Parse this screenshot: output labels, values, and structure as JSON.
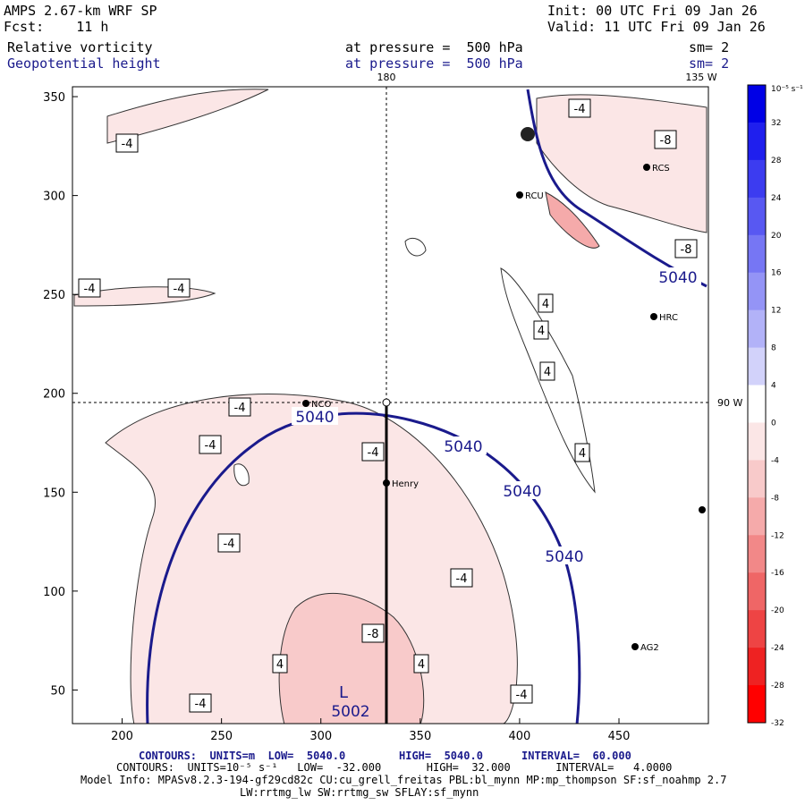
{
  "header": {
    "model": "AMPS 2.67-km WRF SP",
    "forecast": "Fcst:    11 h",
    "init": "Init: 00 UTC Fri 09 Jan 26",
    "valid": "Valid: 11 UTC Fri 09 Jan 26",
    "field1": {
      "name": "Relative vorticity",
      "level": "at pressure =  500 hPa",
      "smooth": "sm= 2"
    },
    "field2": {
      "name": "Geopotential height",
      "level": "at pressure =  500 hPa",
      "smooth": "sm= 2"
    }
  },
  "map_labels": {
    "lon180": "180",
    "lon135w": "135 W",
    "lon90w": "90 W",
    "stations": [
      "NCO",
      "Henry",
      "RCS",
      "RCU",
      "HRC",
      "AG2"
    ]
  },
  "colorbar": {
    "unit_label": "10⁻⁵ s⁻¹",
    "ticks": [
      "32",
      "28",
      "24",
      "20",
      "16",
      "12",
      "8",
      "4",
      "0",
      "-4",
      "-8",
      "-12",
      "-16",
      "-20",
      "-24",
      "-28",
      "-32"
    ],
    "colors": [
      "#0000e6",
      "#1f1fee",
      "#3c3cf0",
      "#5858f2",
      "#7676f4",
      "#9494f6",
      "#b2b2f8",
      "#d2d2fa",
      "#ffffff",
      "#fbe6e6",
      "#f8caca",
      "#f5aaaa",
      "#f28888",
      "#ef6666",
      "#ee4444",
      "#ee2222",
      "#ff0000"
    ]
  },
  "chart_data": {
    "type": "contour",
    "x_ticks": [
      200,
      250,
      300,
      350,
      400,
      450
    ],
    "y_ticks": [
      50,
      100,
      150,
      200,
      250,
      300,
      350
    ],
    "xlim": [
      175,
      495
    ],
    "ylim": [
      33,
      355
    ],
    "height_labels": [
      "5040",
      "5040",
      "5040",
      "5040",
      "5040"
    ],
    "low_label": "L",
    "low_value": "5002",
    "vort_labels": [
      "-4",
      "-4",
      "-4",
      "-4",
      "-4",
      "-4",
      "-4",
      "-4",
      "-4",
      "-4",
      "-4",
      "-8",
      "-8",
      "-8",
      "4",
      "4",
      "4",
      "4",
      "4",
      "4"
    ]
  },
  "footer": {
    "line1_a": "CONTOURS:  UNITS=m  LOW=  5040.0",
    "line1_b": "HIGH=  5040.0",
    "line1_c": "INTERVAL=  60.000",
    "line2": "CONTOURS:  UNITS=10⁻⁵ s⁻¹   LOW=  -32.000       HIGH=  32.000       INTERVAL=   4.0000",
    "line3": "Model Info: MPASv8.2.3-194-gf29cd82c CU:cu_grell_freitas PBL:bl_mynn MP:mp_thompson SF:sf_noahmp 2.7",
    "line4": "LW:rrtmg_lw SW:rrtmg_sw SFLAY:sf_mynn"
  }
}
